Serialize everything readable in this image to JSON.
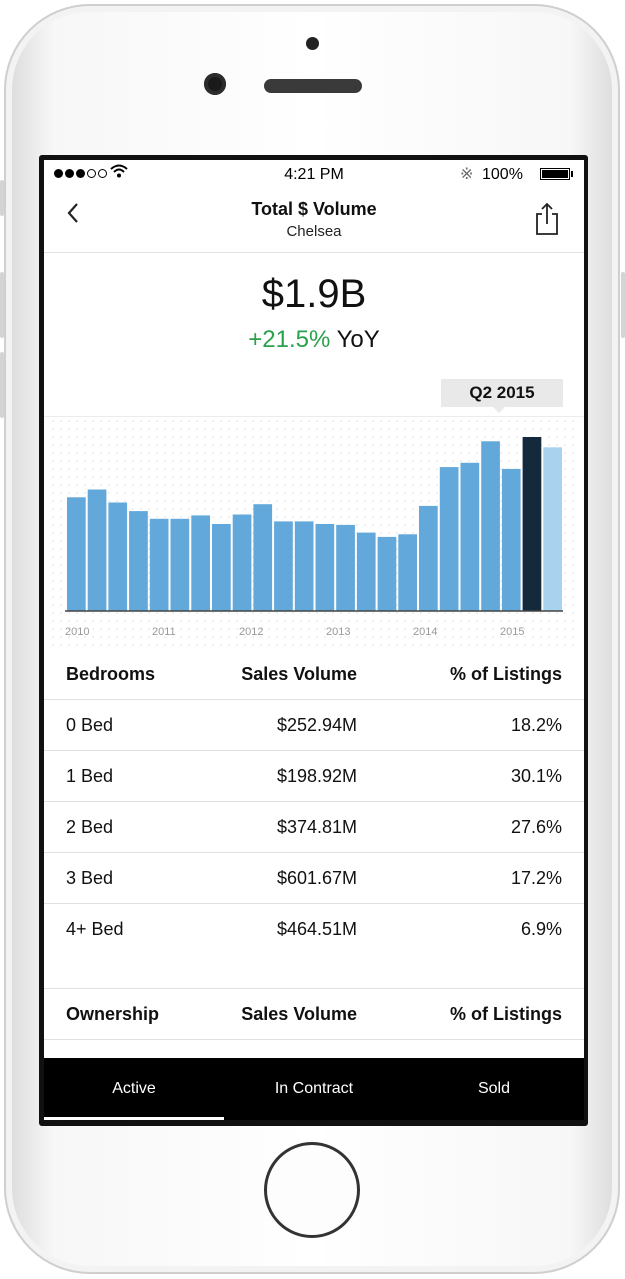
{
  "status_bar": {
    "time": "4:21 PM",
    "battery": "100%",
    "signal_dots": [
      1,
      1,
      1,
      0,
      0
    ]
  },
  "nav": {
    "back_icon": "chevron-left-icon",
    "title": "Total $ Volume",
    "subtitle": "Chelsea",
    "share_icon": "share-icon"
  },
  "metric": {
    "value": "$1.9B",
    "change": "+21.5%",
    "change_label": "YoY",
    "change_color": "#2aa14b"
  },
  "tooltip": {
    "label": "Q2 2015"
  },
  "chart_data": {
    "type": "bar",
    "x_tick_labels": [
      "2010",
      "2011",
      "2012",
      "2013",
      "2014",
      "2015"
    ],
    "values": [
      1.32,
      1.41,
      1.26,
      1.16,
      1.07,
      1.07,
      1.11,
      1.01,
      1.12,
      1.24,
      1.04,
      1.04,
      1.01,
      1.0,
      0.91,
      0.86,
      0.89,
      1.22,
      1.67,
      1.72,
      1.97,
      1.65,
      2.02,
      1.9
    ],
    "highlight_index": 22,
    "projected_index": 23,
    "colors": {
      "bar": "#62a8da",
      "highlight": "#15293d",
      "projected": "#a9d2ef"
    }
  },
  "bedrooms_table": {
    "headers": [
      "Bedrooms",
      "Sales Volume",
      "% of Listings"
    ],
    "rows": [
      [
        "0 Bed",
        "$252.94M",
        "18.2%"
      ],
      [
        "1 Bed",
        "$198.92M",
        "30.1%"
      ],
      [
        "2 Bed",
        "$374.81M",
        "27.6%"
      ],
      [
        "3 Bed",
        "$601.67M",
        "17.2%"
      ],
      [
        "4+ Bed",
        "$464.51M",
        "6.9%"
      ]
    ]
  },
  "ownership_table": {
    "headers": [
      "Ownership",
      "Sales Volume",
      "% of Listings"
    ]
  },
  "tabs": [
    {
      "label": "Active"
    },
    {
      "label": "In Contract"
    },
    {
      "label": "Sold"
    }
  ]
}
